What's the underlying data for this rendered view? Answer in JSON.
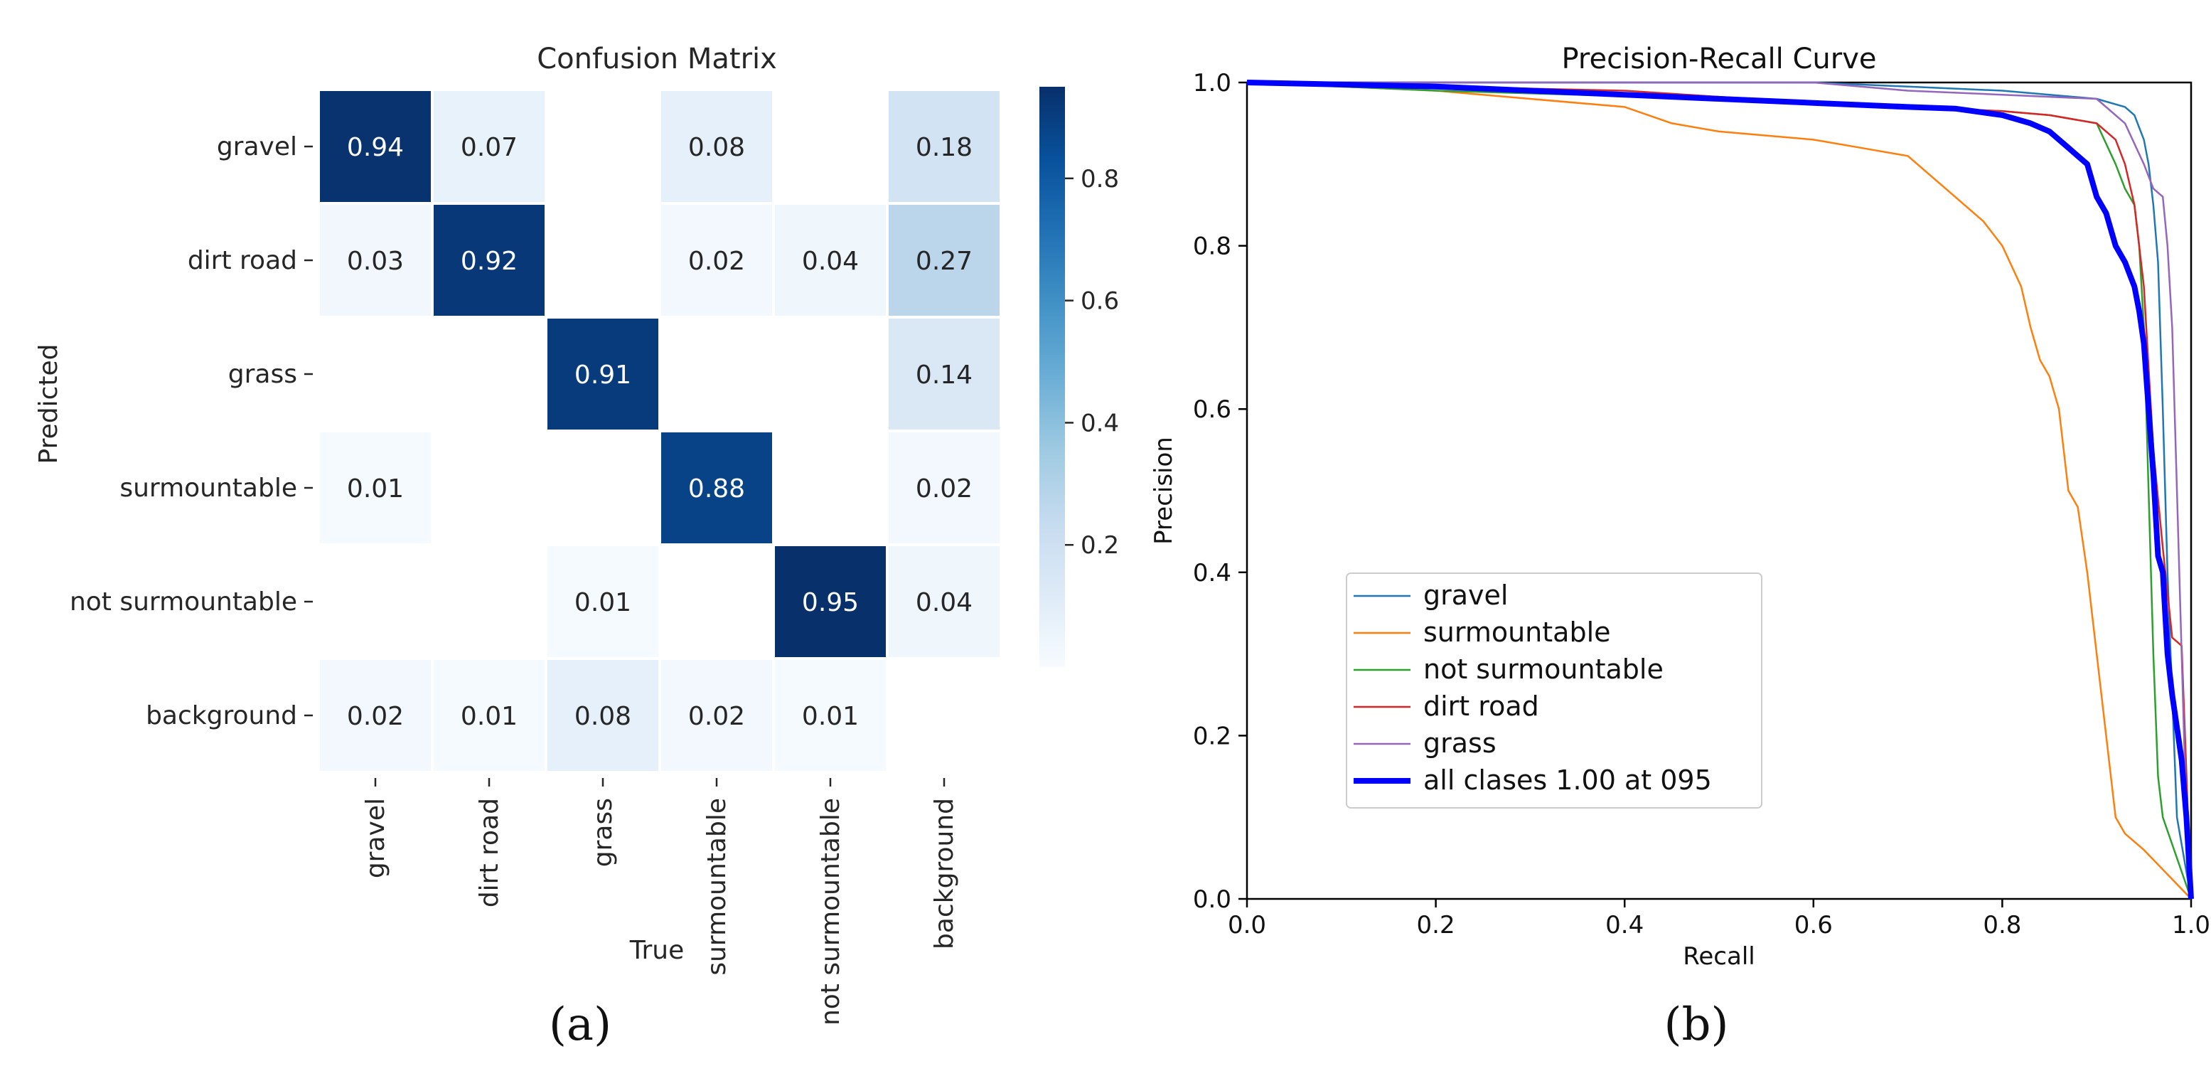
{
  "chart_data": [
    {
      "type": "heatmap",
      "title": "Confusion Matrix",
      "xlabel": "True",
      "ylabel": "Predicted",
      "row_labels": [
        "gravel",
        "dirt road",
        "grass",
        "surmountable",
        "not surmountable",
        "background"
      ],
      "col_labels": [
        "gravel",
        "dirt road",
        "grass",
        "surmountable",
        "not surmountable",
        "background"
      ],
      "values": [
        [
          0.94,
          0.07,
          null,
          0.08,
          null,
          0.18
        ],
        [
          0.03,
          0.92,
          null,
          0.02,
          0.04,
          0.27
        ],
        [
          null,
          null,
          0.91,
          null,
          null,
          0.14
        ],
        [
          0.01,
          null,
          null,
          0.88,
          null,
          0.02
        ],
        [
          null,
          null,
          0.01,
          null,
          0.95,
          0.04
        ],
        [
          0.02,
          0.01,
          0.08,
          0.02,
          0.01,
          null
        ]
      ],
      "cell_labels": [
        [
          "0.94",
          "0.07",
          "",
          "0.08",
          "",
          "0.18"
        ],
        [
          "0.03",
          "0.92",
          "",
          "0.02",
          "0.04",
          "0.27"
        ],
        [
          "",
          "",
          "0.91",
          "",
          "",
          "0.14"
        ],
        [
          "0.01",
          "",
          "",
          "0.88",
          "",
          "0.02"
        ],
        [
          "",
          "",
          "0.01",
          "",
          "0.95",
          "0.04"
        ],
        [
          "0.02",
          "0.01",
          "0.08",
          "0.02",
          "0.01",
          ""
        ]
      ],
      "colorbar": {
        "min": 0.0,
        "max": 0.95,
        "ticks": [
          0.2,
          0.4,
          0.6,
          0.8
        ],
        "tick_labels": [
          "0.2",
          "0.4",
          "0.6",
          "0.8"
        ],
        "colormap": "Blues"
      },
      "panel_label": "(a)"
    },
    {
      "type": "line",
      "title": "Precision-Recall Curve",
      "xlabel": "Recall",
      "ylabel": "Precision",
      "xlim": [
        0.0,
        1.0
      ],
      "ylim": [
        0.0,
        1.0
      ],
      "xticks": [
        0.0,
        0.2,
        0.4,
        0.6,
        0.8,
        1.0
      ],
      "xtick_labels": [
        "0.0",
        "0.2",
        "0.4",
        "0.6",
        "0.8",
        "1.0"
      ],
      "yticks": [
        0.0,
        0.2,
        0.4,
        0.6,
        0.8,
        1.0
      ],
      "ytick_labels": [
        "0.0",
        "0.2",
        "0.4",
        "0.6",
        "0.8",
        "1.0"
      ],
      "legend_position": "lower-left",
      "series": [
        {
          "name": "gravel",
          "color": "#1f77b4",
          "width": "thin",
          "x": [
            0.0,
            0.2,
            0.5,
            0.6,
            0.8,
            0.9,
            0.93,
            0.94,
            0.95,
            0.955,
            0.96,
            0.965,
            0.97,
            0.975,
            0.98,
            0.985,
            1.0
          ],
          "y": [
            1.0,
            1.0,
            1.0,
            1.0,
            0.99,
            0.98,
            0.97,
            0.96,
            0.93,
            0.9,
            0.85,
            0.78,
            0.6,
            0.4,
            0.25,
            0.1,
            0.0
          ]
        },
        {
          "name": "surmountable",
          "color": "#ff7f0e",
          "width": "thin",
          "x": [
            0.0,
            0.2,
            0.3,
            0.4,
            0.45,
            0.5,
            0.55,
            0.6,
            0.65,
            0.7,
            0.72,
            0.75,
            0.78,
            0.8,
            0.82,
            0.83,
            0.84,
            0.85,
            0.86,
            0.87,
            0.88,
            0.89,
            0.9,
            0.91,
            0.92,
            0.93,
            0.95,
            1.0
          ],
          "y": [
            1.0,
            0.99,
            0.98,
            0.97,
            0.95,
            0.94,
            0.935,
            0.93,
            0.92,
            0.91,
            0.89,
            0.86,
            0.83,
            0.8,
            0.75,
            0.7,
            0.66,
            0.64,
            0.6,
            0.5,
            0.48,
            0.4,
            0.3,
            0.2,
            0.1,
            0.08,
            0.06,
            0.0
          ]
        },
        {
          "name": "not surmountable",
          "color": "#2ca02c",
          "width": "thin",
          "x": [
            0.0,
            0.2,
            0.35,
            0.5,
            0.6,
            0.7,
            0.8,
            0.85,
            0.9,
            0.92,
            0.93,
            0.94,
            0.945,
            0.95,
            0.955,
            0.96,
            0.965,
            0.97,
            1.0
          ],
          "y": [
            1.0,
            0.99,
            0.985,
            0.98,
            0.975,
            0.97,
            0.965,
            0.96,
            0.95,
            0.9,
            0.87,
            0.85,
            0.8,
            0.7,
            0.5,
            0.3,
            0.15,
            0.1,
            0.0
          ]
        },
        {
          "name": "dirt road",
          "color": "#d62728",
          "width": "thin",
          "x": [
            0.0,
            0.4,
            0.6,
            0.7,
            0.8,
            0.85,
            0.9,
            0.92,
            0.93,
            0.94,
            0.95,
            0.96,
            0.97,
            0.98,
            0.99,
            1.0
          ],
          "y": [
            1.0,
            0.99,
            0.975,
            0.97,
            0.965,
            0.96,
            0.95,
            0.93,
            0.9,
            0.85,
            0.75,
            0.55,
            0.43,
            0.32,
            0.31,
            0.0
          ]
        },
        {
          "name": "grass",
          "color": "#9467bd",
          "width": "thin",
          "x": [
            0.0,
            0.3,
            0.6,
            0.7,
            0.8,
            0.9,
            0.93,
            0.95,
            0.96,
            0.97,
            0.975,
            0.98,
            0.985,
            0.99,
            0.995,
            1.0
          ],
          "y": [
            1.0,
            1.0,
            1.0,
            0.99,
            0.985,
            0.98,
            0.95,
            0.9,
            0.87,
            0.86,
            0.8,
            0.7,
            0.5,
            0.3,
            0.1,
            0.0
          ]
        },
        {
          "name": "all clases 1.00 at 095",
          "color": "#0000ff",
          "width": "thick",
          "x": [
            0.0,
            0.2,
            0.3,
            0.4,
            0.5,
            0.6,
            0.7,
            0.75,
            0.8,
            0.83,
            0.85,
            0.87,
            0.88,
            0.89,
            0.9,
            0.91,
            0.92,
            0.93,
            0.94,
            0.945,
            0.95,
            0.955,
            0.96,
            0.965,
            0.97,
            0.975,
            0.98,
            0.985,
            0.99,
            0.995,
            1.0
          ],
          "y": [
            1.0,
            0.995,
            0.99,
            0.985,
            0.98,
            0.975,
            0.97,
            0.968,
            0.96,
            0.95,
            0.94,
            0.92,
            0.91,
            0.9,
            0.86,
            0.84,
            0.8,
            0.78,
            0.75,
            0.72,
            0.68,
            0.6,
            0.52,
            0.42,
            0.4,
            0.3,
            0.25,
            0.21,
            0.17,
            0.1,
            0.0
          ]
        }
      ],
      "panel_label": "(b)"
    }
  ]
}
